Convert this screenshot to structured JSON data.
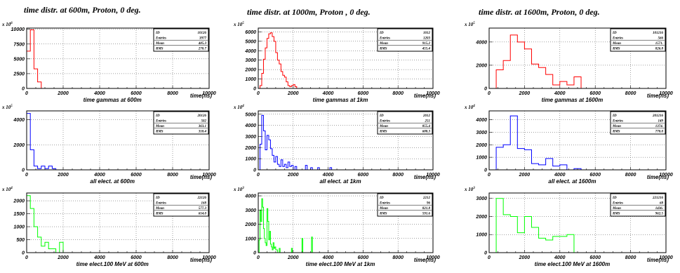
{
  "column_titles": [
    "time  distr. at 600m, Proton, 0 deg.",
    "time  distr. at 1000m, Proton , 0 deg.",
    "time  distr. at 1600m, Proton, 0 deg."
  ],
  "colors": {
    "gammas": "#ff0000",
    "electrons": "#0000ff",
    "muons": "#00ff00"
  },
  "x_tick_labels": [
    "0",
    "2000",
    "4000",
    "6000",
    "8000",
    "10000"
  ],
  "chart_data": [
    {
      "type": "bar",
      "series_color": "#ff0000",
      "xlim": [
        0,
        10000
      ],
      "ylim": [
        0,
        10200000
      ],
      "multiplier": "x 10",
      "multiplier_exp": "6",
      "y_ticks": [
        0,
        2500000,
        5000000,
        7500000,
        10000000
      ],
      "y_tick_labels": [
        "0",
        "2500",
        "5000",
        "7500",
        "10000"
      ],
      "xlabel": "time gammas at 600m",
      "xunit": "time(ns)",
      "stats": [
        [
          "ID",
          "10126"
        ],
        [
          "Entries",
          "3977"
        ],
        [
          "Mean",
          "485.3"
        ],
        [
          "RMS",
          "270.7"
        ]
      ],
      "bin_width": 200,
      "values": [
        6300000,
        9900000,
        3300000,
        1100000,
        0
      ]
    },
    {
      "type": "bar",
      "series_color": "#ff0000",
      "xlim": [
        0,
        10000
      ],
      "ylim": [
        0,
        6400000
      ],
      "multiplier": "x 10",
      "multiplier_exp": "5",
      "y_ticks": [
        0,
        1000000,
        2000000,
        3000000,
        4000000,
        5000000,
        6000000
      ],
      "y_tick_labels": [
        "0",
        "1000",
        "2000",
        "3000",
        "4000",
        "5000",
        "6000"
      ],
      "xlabel": "time gammas at 1km",
      "xunit": "time(ns)",
      "stats": [
        [
          "ID",
          "1012"
        ],
        [
          "Entries",
          "1203"
        ],
        [
          "Mean",
          "915.2"
        ],
        [
          "RMS",
          "455.4"
        ]
      ],
      "bin_width": 100,
      "values": [
        0,
        300000,
        1600000,
        3100000,
        4300000,
        5300000,
        5800000,
        5900000,
        5500000,
        5000000,
        3800000,
        3000000,
        2600000,
        1800000,
        1400000,
        1200000,
        700000,
        300000,
        200000,
        300000,
        400000,
        200000,
        0
      ]
    },
    {
      "type": "bar",
      "series_color": "#ff0000",
      "xlim": [
        0,
        10000
      ],
      "ylim": [
        0,
        5200000
      ],
      "multiplier": "x 10",
      "multiplier_exp": "5",
      "y_ticks": [
        0,
        2000000,
        4000000
      ],
      "y_tick_labels": [
        "0",
        "2000",
        "4000"
      ],
      "xlabel": "time gammas at 1600m",
      "xunit": "time(ns)",
      "stats": [
        [
          "ID",
          "101216"
        ],
        [
          "Entries",
          "566"
        ],
        [
          "Mean",
          "1571."
        ],
        [
          "RMS",
          "826.8"
        ]
      ],
      "bin_width": 400,
      "values": [
        0,
        1600000,
        2400000,
        4600000,
        4000000,
        3400000,
        2100000,
        1800000,
        1200000,
        300000,
        600000,
        300000,
        1000000,
        0
      ]
    },
    {
      "type": "bar",
      "series_color": "#0000ff",
      "xlim": [
        0,
        10000
      ],
      "ylim": [
        0,
        4700000
      ],
      "multiplier": "x 10",
      "multiplier_exp": "5",
      "y_ticks": [
        0,
        2000000,
        4000000
      ],
      "y_tick_labels": [
        "0",
        "2000",
        "4000"
      ],
      "xlabel": "all elect. at 600m",
      "xunit": "time(ns)",
      "stats": [
        [
          "ID",
          "20126"
        ],
        [
          "Entries",
          "502"
        ],
        [
          "Mean",
          "363.1"
        ],
        [
          "RMS",
          "318.4"
        ]
      ],
      "bin_width": 200,
      "values": [
        4500000,
        1600000,
        300000,
        100000,
        300000,
        100000,
        300000,
        100000,
        0
      ]
    },
    {
      "type": "bar",
      "series_color": "#0000ff",
      "xlim": [
        0,
        10000
      ],
      "ylim": [
        0,
        5300000
      ],
      "multiplier": "x 10",
      "multiplier_exp": "4",
      "y_ticks": [
        0,
        1000000,
        2000000,
        3000000,
        4000000,
        5000000
      ],
      "y_tick_labels": [
        "0",
        "1000",
        "2000",
        "3000",
        "4000",
        "5000"
      ],
      "xlabel": "all elect. at 1km",
      "xunit": "time(ns)",
      "stats": [
        [
          "ID",
          "2012"
        ],
        [
          "Entries",
          "251"
        ],
        [
          "Mean",
          "855.4"
        ],
        [
          "RMS",
          "688.3"
        ]
      ],
      "bin_width": 100,
      "values": [
        0,
        2300000,
        4900000,
        3500000,
        1800000,
        3100000,
        2700000,
        1900000,
        1300000,
        700000,
        1200000,
        500000,
        300000,
        900000,
        300000,
        500000,
        200000,
        700000,
        300000,
        400000,
        0,
        300000,
        0,
        0,
        0,
        0,
        0,
        400000,
        0,
        0,
        200000,
        0,
        0,
        0,
        200000,
        0,
        0,
        0,
        0,
        0,
        0,
        200000,
        0
      ]
    },
    {
      "type": "bar",
      "series_color": "#0000ff",
      "xlim": [
        0,
        10000
      ],
      "ylim": [
        0,
        4700000
      ],
      "multiplier": "x 10",
      "multiplier_exp": "4",
      "y_ticks": [
        0,
        1000000,
        2000000,
        3000000,
        4000000
      ],
      "y_tick_labels": [
        "0",
        "1000",
        "2000",
        "3000",
        "4000"
      ],
      "xlabel": "all elect. at 1600m",
      "xunit": "time(ns)",
      "stats": [
        [
          "ID",
          "201216"
        ],
        [
          "Entries",
          "149"
        ],
        [
          "Mean",
          "1374."
        ],
        [
          "RMS",
          "770.0"
        ]
      ],
      "bin_width": 400,
      "values": [
        0,
        1800000,
        2000000,
        4300000,
        1700000,
        1600000,
        500000,
        400000,
        900000,
        300000,
        400000,
        0,
        100000,
        0,
        0,
        0,
        0,
        0,
        0
      ]
    },
    {
      "type": "bar",
      "series_color": "#00ff00",
      "xlim": [
        0,
        10000
      ],
      "ylim": [
        0,
        2300000
      ],
      "multiplier": "x 10",
      "multiplier_exp": "4",
      "y_ticks": [
        0,
        500000,
        1000000,
        1500000,
        2000000
      ],
      "y_tick_labels": [
        "0",
        "500",
        "1000",
        "1500",
        "2000"
      ],
      "xlabel": "time elect.100 MeV at 600m",
      "xunit": "time(ns)",
      "stats": [
        [
          "ID",
          "22126"
        ],
        [
          "Entries",
          "168"
        ],
        [
          "Mean",
          "577.3"
        ],
        [
          "RMS",
          "614.0"
        ]
      ],
      "bin_width": 200,
      "values": [
        2200000,
        1700000,
        1000000,
        600000,
        250000,
        400000,
        150000,
        150000,
        0,
        400000,
        0
      ]
    },
    {
      "type": "bar",
      "series_color": "#00ff00",
      "xlim": [
        0,
        10000
      ],
      "ylim": [
        0,
        4200000
      ],
      "multiplier": "x 10",
      "multiplier_exp": "3",
      "y_ticks": [
        0,
        1000000,
        2000000,
        3000000,
        4000000
      ],
      "y_tick_labels": [
        "0",
        "1000",
        "2000",
        "3000",
        "4000"
      ],
      "xlabel": "time elect.100 MeV at 1km",
      "xunit": "time(ns)",
      "stats": [
        [
          "ID",
          "2212"
        ],
        [
          "Entries",
          "96"
        ],
        [
          "Mean",
          "821.8"
        ],
        [
          "RMS",
          "591.6"
        ]
      ],
      "bin_width": 50,
      "values": [
        0,
        900000,
        3000000,
        2200000,
        3800000,
        3200000,
        1700000,
        1000000,
        700000,
        500000,
        3100000,
        2200000,
        900000,
        1500000,
        600000,
        400000,
        200000,
        700000,
        300000,
        400000,
        200000,
        200000,
        0,
        0,
        300000,
        0,
        0,
        0,
        0,
        0,
        0,
        0,
        0,
        0,
        0,
        0,
        0,
        0,
        300000,
        0,
        0,
        0,
        0,
        0,
        0,
        0,
        0,
        0,
        0,
        0,
        1000000,
        0,
        0,
        0,
        0,
        0,
        0,
        0,
        0,
        0,
        0,
        1100000,
        0
      ]
    },
    {
      "type": "bar",
      "series_color": "#00ff00",
      "xlim": [
        0,
        10000
      ],
      "ylim": [
        0,
        3300000
      ],
      "multiplier": "x 10",
      "multiplier_exp": "3",
      "y_ticks": [
        0,
        1000000,
        2000000,
        3000000
      ],
      "y_tick_labels": [
        "0",
        "1000",
        "2000",
        "3000"
      ],
      "xlabel": "time elect.100 MeV at 1600m",
      "xunit": "time(ns)",
      "stats": [
        [
          "ID",
          "221216"
        ],
        [
          "Entries",
          "68"
        ],
        [
          "Mean",
          "1436."
        ],
        [
          "RMS",
          "962.5"
        ]
      ],
      "bin_width": 400,
      "values": [
        0,
        3000000,
        2100000,
        2000000,
        1100000,
        2000000,
        1400000,
        800000,
        700000,
        900000,
        900000,
        1000000,
        0,
        0,
        0,
        0,
        0,
        0
      ]
    }
  ]
}
